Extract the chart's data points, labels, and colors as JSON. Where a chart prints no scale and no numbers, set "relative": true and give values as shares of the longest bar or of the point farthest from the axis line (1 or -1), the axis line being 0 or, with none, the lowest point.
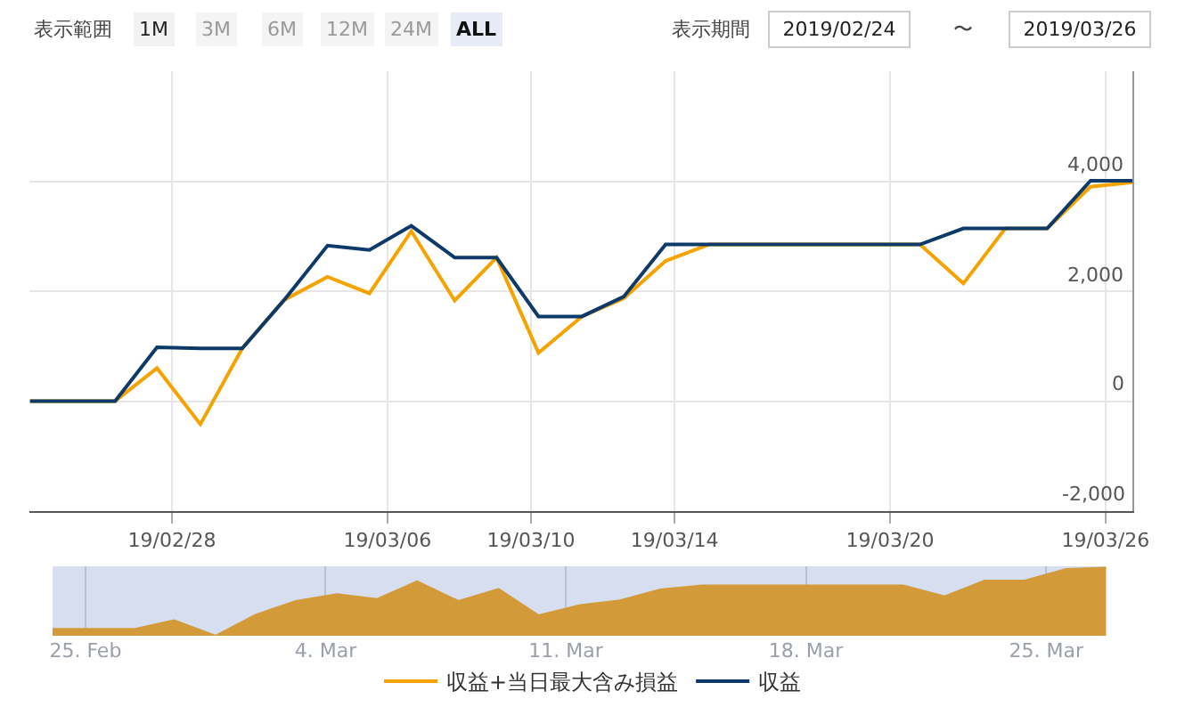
{
  "chart_data": [
    {
      "type": "line",
      "annotations": [
        "表示範囲",
        "1M",
        "3M",
        "6M",
        "12M",
        "24M",
        "ALL",
        "表示期間",
        "2019/02/24",
        "〜",
        "2019/03/26"
      ],
      "x": [
        "2019-02-24T01:00",
        "2019-02-25T06:00",
        "2019-02-26T10:00",
        "2019-02-27T14:00",
        "2019-02-28T19:00",
        "2019-03-01T23:00",
        "2019-03-03T03:00",
        "2019-03-04T08:00",
        "2019-03-05T12:00",
        "2019-03-06T16:00",
        "2019-03-07T21:00",
        "2019-03-09T01:00",
        "2019-03-10T05:00",
        "2019-03-11T10:00",
        "2019-03-12T14:00",
        "2019-03-13T18:00",
        "2019-03-14T23:00",
        "2019-03-16T03:00",
        "2019-03-17T07:00",
        "2019-03-18T12:00",
        "2019-03-19T16:00",
        "2019-03-20T20:00",
        "2019-03-22T01:00",
        "2019-03-23T05:00",
        "2019-03-24T09:00",
        "2019-03-25T14:00",
        "2019-03-26T18:00"
      ],
      "series": [
        {
          "name": "収益+当日最大含み損益",
          "color": "#f5a300",
          "values": [
            0,
            0,
            0,
            600,
            -420,
            960,
            1840,
            2260,
            1960,
            3090,
            1830,
            2610,
            880,
            1540,
            1870,
            2550,
            2850,
            2850,
            2850,
            2850,
            2850,
            2850,
            2140,
            3140,
            3140,
            3900,
            3980
          ]
        },
        {
          "name": "収益",
          "color": "#0e3a6a",
          "values": [
            0,
            0,
            0,
            980,
            960,
            960,
            1840,
            2830,
            2750,
            3190,
            2610,
            2610,
            1540,
            1540,
            1900,
            2850,
            2850,
            2850,
            2850,
            2850,
            2850,
            2850,
            3140,
            3140,
            3140,
            4010,
            4010
          ]
        }
      ],
      "xlim": [
        "2019-02-24T01:00",
        "2019-03-26T18:00"
      ],
      "xticks": [
        {
          "value": "2019-02-28",
          "label": "19/02/28"
        },
        {
          "value": "2019-03-06",
          "label": "19/03/06"
        },
        {
          "value": "2019-03-10",
          "label": "19/03/10"
        },
        {
          "value": "2019-03-14",
          "label": "19/03/14"
        },
        {
          "value": "2019-03-20",
          "label": "19/03/20"
        },
        {
          "value": "2019-03-26",
          "label": "19/03/26"
        }
      ],
      "ylim": [
        -2000,
        6000
      ],
      "yticks": [
        {
          "value": 4000,
          "label": "4,000"
        },
        {
          "value": 2000,
          "label": "2,000"
        },
        0,
        {
          "value": -2000,
          "label": "-2,000"
        }
      ],
      "grid": true,
      "legend": "bottom",
      "marker": "none",
      "line_style": "solid"
    },
    {
      "type": "area",
      "relative": true,
      "x": [
        "2019-02-24T01:00",
        "2019-02-25T06:00",
        "2019-02-26T10:00",
        "2019-02-27T14:00",
        "2019-02-28T19:00",
        "2019-03-01T23:00",
        "2019-03-03T03:00",
        "2019-03-04T08:00",
        "2019-03-05T12:00",
        "2019-03-06T16:00",
        "2019-03-07T21:00",
        "2019-03-09T01:00",
        "2019-03-10T05:00",
        "2019-03-11T10:00",
        "2019-03-12T14:00",
        "2019-03-13T18:00",
        "2019-03-14T23:00",
        "2019-03-16T03:00",
        "2019-03-17T07:00",
        "2019-03-18T12:00",
        "2019-03-19T16:00",
        "2019-03-20T20:00",
        "2019-03-22T01:00",
        "2019-03-23T05:00",
        "2019-03-24T09:00",
        "2019-03-25T14:00",
        "2019-03-26T18:00"
      ],
      "series": [
        {
          "color": "#d39a3a",
          "values": [
            0.1,
            0.1,
            0.1,
            0.23,
            0,
            0.31,
            0.51,
            0.61,
            0.54,
            0.8,
            0.51,
            0.69,
            0.3,
            0.45,
            0.52,
            0.68,
            0.74,
            0.74,
            0.74,
            0.74,
            0.74,
            0.74,
            0.58,
            0.81,
            0.81,
            0.98,
            1
          ]
        }
      ],
      "xlim": [
        "2019-02-24T01:00",
        "2019-03-26T18:00"
      ],
      "xticks": [
        {
          "value": "2019-02-25",
          "label": "25. Feb"
        },
        {
          "value": "2019-03-04",
          "label": "4. Mar"
        },
        {
          "value": "2019-03-11",
          "label": "11. Mar"
        },
        {
          "value": "2019-03-18",
          "label": "18. Mar"
        },
        {
          "value": "2019-03-25",
          "label": "25. Mar"
        }
      ],
      "grid": "x",
      "tick_labels": "x",
      "legend": false
    }
  ]
}
